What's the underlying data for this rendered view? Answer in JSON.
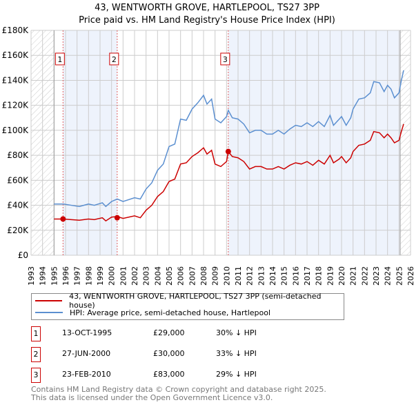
{
  "title": "43, WENTWORTH GROVE, HARTLEPOOL, TS27 3PP",
  "subtitle": "Price paid vs. HM Land Registry's House Price Index (HPI)",
  "legend": {
    "red": "43, WENTWORTH GROVE, HARTLEPOOL, TS27 3PP (semi-detached house)",
    "blue": "HPI: Average price, semi-detached house, Hartlepool"
  },
  "sales": [
    {
      "num": "1",
      "date": "13-OCT-1995",
      "price": "£29,000",
      "diff": "30% ↓ HPI",
      "x": 1995.78,
      "v": 29
    },
    {
      "num": "2",
      "date": "27-JUN-2000",
      "price": "£30,000",
      "diff": "33% ↓ HPI",
      "x": 2000.49,
      "v": 30
    },
    {
      "num": "3",
      "date": "23-FEB-2010",
      "price": "£83,000",
      "diff": "29% ↓ HPI",
      "x": 2010.15,
      "v": 83
    }
  ],
  "footer": [
    "Contains HM Land Registry data © Crown copyright and database right 2025.",
    "This data is licensed under the Open Government Licence v3.0."
  ],
  "colors": {
    "red": "#cc0000",
    "blue": "#5b8fd0",
    "shade": "#eef3fc"
  },
  "chart_data": {
    "type": "line",
    "xlim": [
      1993,
      2026
    ],
    "ylim": [
      0,
      180
    ],
    "yticks": [
      "£0",
      "£20K",
      "£40K",
      "£60K",
      "£80K",
      "£100K",
      "£120K",
      "£140K",
      "£160K",
      "£180K"
    ],
    "xticks": [
      "1993",
      "1994",
      "1995",
      "1996",
      "1997",
      "1998",
      "1999",
      "2000",
      "2001",
      "2002",
      "2003",
      "2004",
      "2005",
      "2006",
      "2007",
      "2008",
      "2009",
      "2010",
      "2011",
      "2012",
      "2013",
      "2014",
      "2015",
      "2016",
      "2017",
      "2018",
      "2019",
      "2020",
      "2021",
      "2022",
      "2023",
      "2024",
      "2025",
      "2026"
    ],
    "x": [
      1995.0,
      1995.8,
      1996.5,
      1997.2,
      1998.0,
      1998.5,
      1999.2,
      1999.5,
      2000.0,
      2000.5,
      2001.0,
      2002.0,
      2002.5,
      2003.0,
      2003.5,
      2004.0,
      2004.5,
      2005.0,
      2005.5,
      2006.0,
      2006.5,
      2007.0,
      2007.5,
      2008.0,
      2008.3,
      2008.7,
      2009.0,
      2009.5,
      2010.0,
      2010.15,
      2010.5,
      2011.0,
      2011.5,
      2012.0,
      2012.5,
      2013.0,
      2013.5,
      2014.0,
      2014.5,
      2015.0,
      2015.5,
      2016.0,
      2016.5,
      2017.0,
      2017.5,
      2018.0,
      2018.5,
      2019.0,
      2019.3,
      2019.8,
      2020.0,
      2020.4,
      2020.8,
      2021.0,
      2021.5,
      2022.0,
      2022.5,
      2022.8,
      2023.3,
      2023.7,
      2024.0,
      2024.3,
      2024.6,
      2025.0,
      2025.2,
      2025.4
    ],
    "series": [
      {
        "name": "HPI",
        "values": [
          41,
          41,
          40,
          39,
          41,
          40,
          42,
          39,
          43,
          45,
          43,
          46,
          45,
          53,
          58,
          68,
          73,
          87,
          89,
          109,
          108,
          117,
          122,
          128,
          121,
          125,
          109,
          106,
          111,
          116,
          110,
          109,
          105,
          98,
          100,
          100,
          97,
          97,
          100,
          97,
          101,
          104,
          103,
          106,
          103,
          107,
          103,
          112,
          104,
          109,
          111,
          104,
          110,
          117,
          125,
          126,
          130,
          139,
          138,
          131,
          136,
          133,
          126,
          130,
          140,
          148
        ]
      },
      {
        "name": "Property",
        "values": [
          29,
          29,
          28.5,
          28,
          29,
          28.5,
          30,
          27.5,
          30.5,
          31,
          29.5,
          31.5,
          30,
          36,
          40,
          47,
          51,
          59,
          61,
          73,
          74,
          79,
          82,
          86,
          81,
          84,
          73,
          71,
          75,
          83,
          79,
          78,
          75,
          69,
          71,
          71,
          69,
          69,
          71,
          69,
          72,
          74,
          73,
          75,
          72,
          76,
          73,
          80,
          74,
          77,
          79,
          74,
          78,
          83,
          88,
          89,
          92,
          99,
          98,
          94,
          97,
          94,
          90,
          92,
          99,
          105
        ]
      }
    ]
  }
}
